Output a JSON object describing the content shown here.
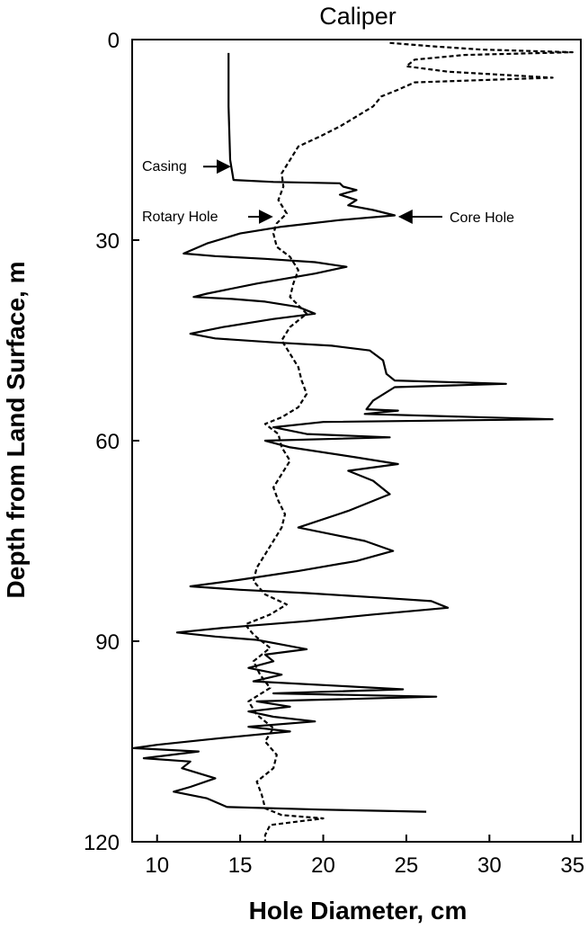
{
  "chart_data": {
    "type": "line",
    "title": "Caliper",
    "xlabel": "Hole Diameter, cm",
    "ylabel": "Depth from Land Surface, m",
    "xlim": [
      8.5,
      35.5
    ],
    "ylim": [
      0,
      120
    ],
    "y_inverted": true,
    "x_ticks": [
      "10",
      "15",
      "20",
      "25",
      "30",
      "35"
    ],
    "y_ticks": [
      "0",
      "30",
      "60",
      "90",
      "120"
    ],
    "grid": false,
    "legend": "none",
    "series": [
      {
        "style": "solid",
        "color": "#000000",
        "points": [
          [
            14.3,
            2
          ],
          [
            14.3,
            10
          ],
          [
            14.4,
            18
          ],
          [
            14.6,
            21
          ],
          [
            17,
            21.3
          ],
          [
            21,
            21.5
          ],
          [
            21.2,
            22
          ],
          [
            22,
            22.5
          ],
          [
            21,
            23.2
          ],
          [
            22,
            24
          ],
          [
            21.5,
            24.8
          ],
          [
            23,
            25.5
          ],
          [
            24.3,
            26.3
          ],
          [
            21,
            27
          ],
          [
            17.5,
            28
          ],
          [
            15,
            29
          ],
          [
            13,
            30.5
          ],
          [
            11.6,
            32
          ],
          [
            13.5,
            32.4
          ],
          [
            16.5,
            32.8
          ],
          [
            19.5,
            33.3
          ],
          [
            21.4,
            34
          ],
          [
            19.5,
            35
          ],
          [
            16,
            36.5
          ],
          [
            13,
            38
          ],
          [
            12.2,
            38.5
          ],
          [
            14.5,
            38.8
          ],
          [
            16.5,
            39.2
          ],
          [
            18.5,
            40
          ],
          [
            19.5,
            41
          ],
          [
            17,
            41.8
          ],
          [
            14,
            43
          ],
          [
            12,
            44
          ],
          [
            13.5,
            44.7
          ],
          [
            17,
            45.3
          ],
          [
            20.5,
            45.8
          ],
          [
            22.8,
            46.5
          ],
          [
            23.6,
            48
          ],
          [
            23.8,
            50
          ],
          [
            24.3,
            51
          ],
          [
            31,
            51.5
          ],
          [
            24.3,
            52
          ],
          [
            23,
            54
          ],
          [
            22.6,
            55.3
          ],
          [
            24.5,
            55.5
          ],
          [
            22.5,
            56
          ],
          [
            33.8,
            56.8
          ],
          [
            20,
            57.2
          ],
          [
            17,
            58
          ],
          [
            19,
            59
          ],
          [
            24,
            59.5
          ],
          [
            16.5,
            60
          ],
          [
            18,
            61
          ],
          [
            22,
            62.5
          ],
          [
            24.5,
            63.5
          ],
          [
            21.5,
            64.5
          ],
          [
            23,
            66
          ],
          [
            24,
            68
          ],
          [
            21.5,
            70.5
          ],
          [
            18.5,
            73
          ],
          [
            20.5,
            74
          ],
          [
            22.5,
            75
          ],
          [
            24.2,
            76.5
          ],
          [
            22,
            78
          ],
          [
            18.5,
            79.5
          ],
          [
            15,
            80.8
          ],
          [
            12,
            81.8
          ],
          [
            15,
            82.3
          ],
          [
            19,
            82.8
          ],
          [
            23.5,
            83.5
          ],
          [
            26.5,
            84
          ],
          [
            27.5,
            85
          ],
          [
            23,
            86
          ],
          [
            19,
            87
          ],
          [
            14,
            88
          ],
          [
            11.2,
            88.7
          ],
          [
            13.5,
            89.3
          ],
          [
            16,
            89.8
          ],
          [
            17.5,
            90.5
          ],
          [
            19,
            91.2
          ],
          [
            16.5,
            92
          ],
          [
            17,
            93
          ],
          [
            15.5,
            94
          ],
          [
            17.5,
            95
          ],
          [
            15.8,
            96
          ],
          [
            24.8,
            97.2
          ],
          [
            17,
            97.8
          ],
          [
            26.8,
            98.3
          ],
          [
            16,
            99
          ],
          [
            18,
            99.8
          ],
          [
            15.5,
            100.5
          ],
          [
            17,
            101.3
          ],
          [
            19.5,
            102
          ],
          [
            15.5,
            102.8
          ],
          [
            18,
            103.5
          ],
          [
            13.8,
            104.5
          ],
          [
            10,
            105.5
          ],
          [
            8.6,
            106
          ],
          [
            12.5,
            106.5
          ],
          [
            9.2,
            107.5
          ],
          [
            12,
            108
          ],
          [
            11.5,
            109
          ],
          [
            13.5,
            110.5
          ],
          [
            12,
            111.8
          ],
          [
            11,
            112.5
          ],
          [
            13,
            113.5
          ],
          [
            14.2,
            114.8
          ],
          [
            20,
            115.2
          ],
          [
            26.2,
            115.5
          ]
        ]
      },
      {
        "style": "dashed",
        "color": "#000000",
        "points": [
          [
            24,
            0.5
          ],
          [
            26.5,
            1
          ],
          [
            29.5,
            1.5
          ],
          [
            35,
            1.9
          ],
          [
            28.5,
            2.3
          ],
          [
            25.5,
            3
          ],
          [
            25,
            4
          ],
          [
            27.5,
            4.8
          ],
          [
            33.8,
            5.7
          ],
          [
            25.5,
            6.4
          ],
          [
            24.5,
            7.5
          ],
          [
            23.5,
            8.5
          ],
          [
            23,
            10
          ],
          [
            22,
            11.5
          ],
          [
            21,
            13
          ],
          [
            19.8,
            14.5
          ],
          [
            18.5,
            16
          ],
          [
            18,
            18
          ],
          [
            17.5,
            20
          ],
          [
            17.6,
            22
          ],
          [
            17.3,
            24
          ],
          [
            17.8,
            26
          ],
          [
            17.2,
            27.5
          ],
          [
            17,
            29
          ],
          [
            17.2,
            31
          ],
          [
            18,
            32.5
          ],
          [
            18.5,
            34.5
          ],
          [
            18.2,
            36.5
          ],
          [
            18,
            38.5
          ],
          [
            19,
            41
          ],
          [
            18,
            43
          ],
          [
            17.5,
            45
          ],
          [
            18,
            47
          ],
          [
            18.5,
            49
          ],
          [
            18.7,
            51
          ],
          [
            19,
            53
          ],
          [
            18.5,
            55
          ],
          [
            17.5,
            56.5
          ],
          [
            16.5,
            57.5
          ],
          [
            17.3,
            59
          ],
          [
            17.5,
            61
          ],
          [
            18,
            63
          ],
          [
            17.5,
            65
          ],
          [
            17,
            67
          ],
          [
            17.3,
            69
          ],
          [
            17.7,
            71
          ],
          [
            17.5,
            73
          ],
          [
            17,
            75
          ],
          [
            16.5,
            77
          ],
          [
            16,
            79
          ],
          [
            15.8,
            81
          ],
          [
            16.5,
            83
          ],
          [
            17.8,
            84.5
          ],
          [
            16.8,
            86
          ],
          [
            15.3,
            87.5
          ],
          [
            15.8,
            89
          ],
          [
            16.8,
            91
          ],
          [
            15.8,
            93
          ],
          [
            16.2,
            95
          ],
          [
            16.8,
            97
          ],
          [
            15.5,
            99
          ],
          [
            16,
            101
          ],
          [
            17,
            103
          ],
          [
            16.5,
            105
          ],
          [
            17.2,
            107
          ],
          [
            17,
            109
          ],
          [
            16,
            111
          ],
          [
            16.3,
            113
          ],
          [
            16.5,
            115
          ],
          [
            17.5,
            116
          ],
          [
            20,
            116.5
          ],
          [
            16.8,
            117.5
          ],
          [
            16.5,
            119
          ],
          [
            16.5,
            120
          ]
        ]
      }
    ],
    "annotations": [
      {
        "text": "Casing",
        "x": 14.5,
        "y": 19
      },
      {
        "text": "Rotary Hole",
        "x": 17.2,
        "y": 26.5
      },
      {
        "text": "Core Hole",
        "x": 24.4,
        "y": 26.5
      }
    ]
  }
}
